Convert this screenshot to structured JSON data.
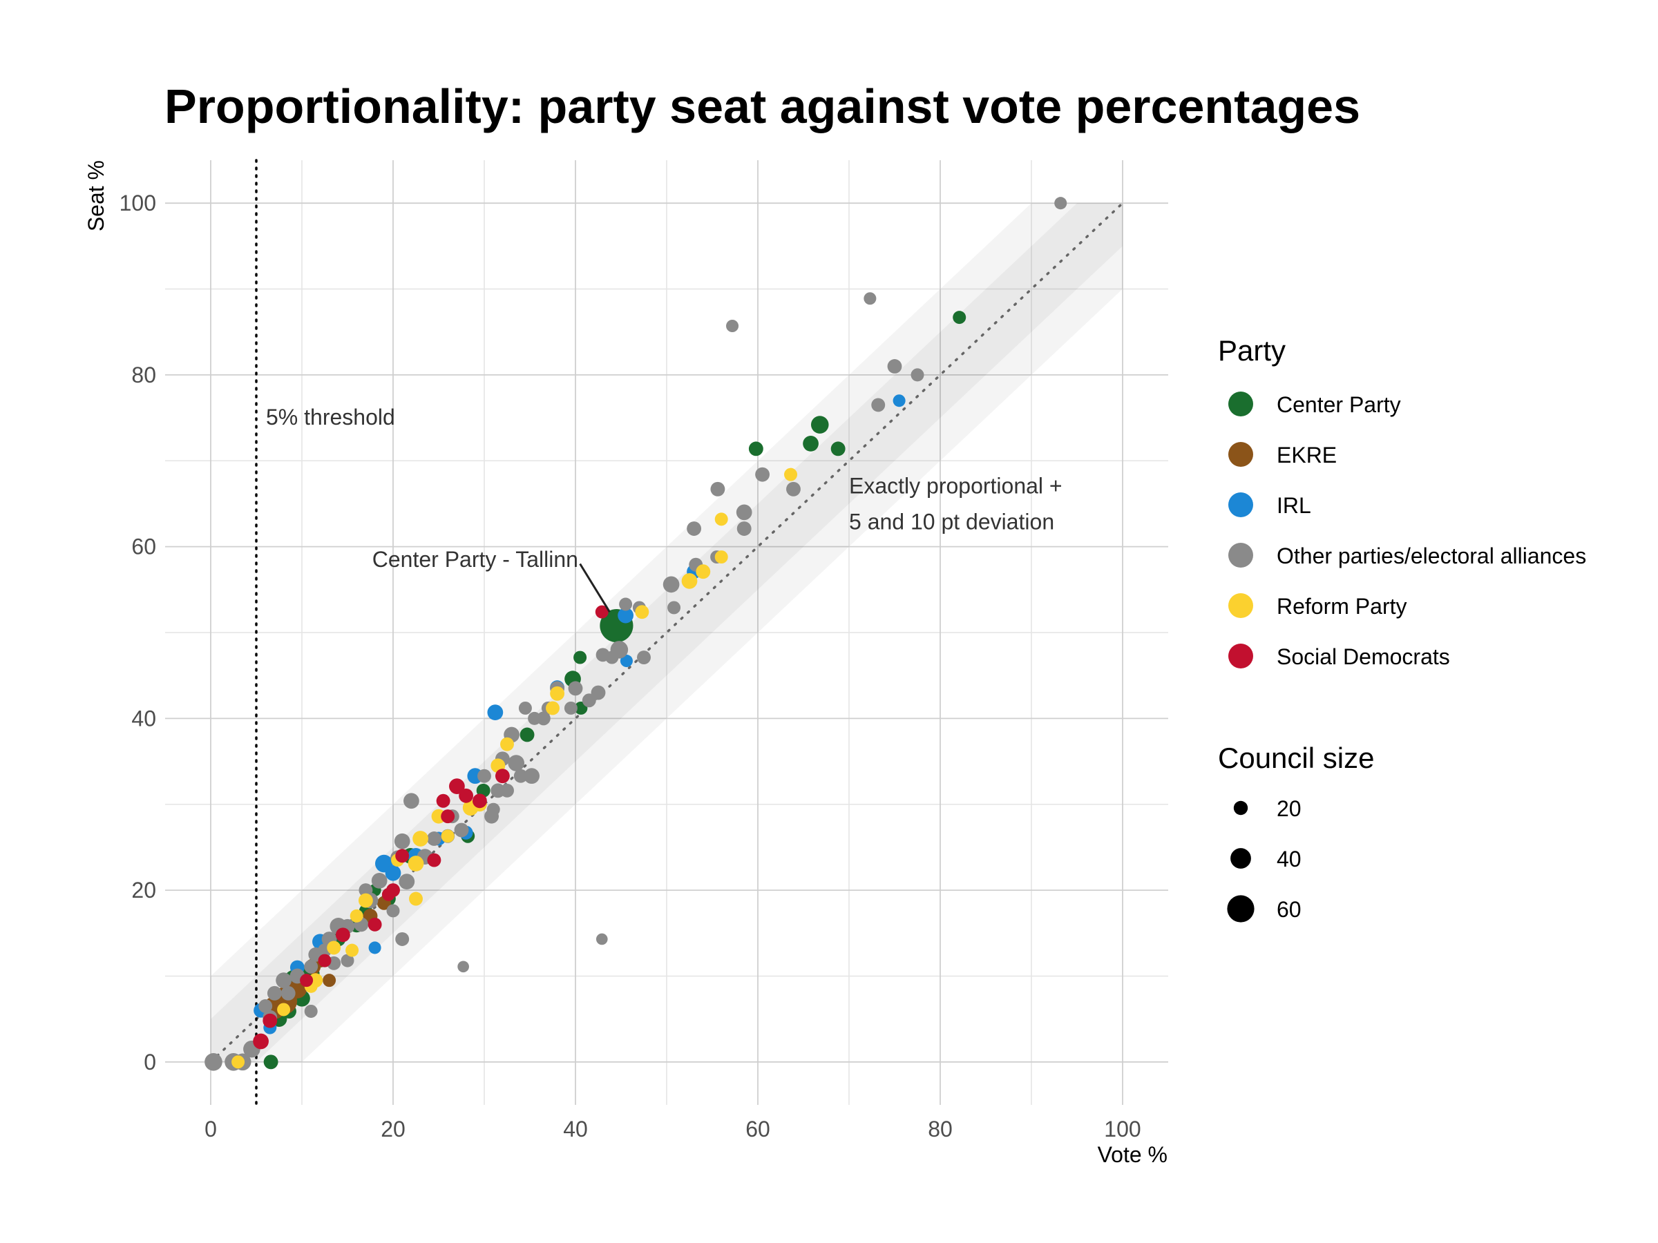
{
  "chart_data": {
    "type": "scatter",
    "title": "Proportionality: party seat against vote percentages",
    "xlabel": "Vote %",
    "ylabel": "Seat %",
    "xlim": [
      -5,
      105
    ],
    "ylim": [
      -5,
      105
    ],
    "x_ticks": [
      0,
      20,
      40,
      60,
      80,
      100
    ],
    "y_ticks": [
      0,
      20,
      40,
      60,
      80,
      100
    ],
    "grid": true,
    "legend_position": "right",
    "reference_line": {
      "label": "Exactly proportional + 5 and 10 pt deviation",
      "label_lines": [
        "Exactly proportional +",
        "5 and 10 pt deviation"
      ],
      "slope": 1,
      "bands": [
        5,
        10
      ]
    },
    "threshold": {
      "x": 5,
      "label": "5% threshold"
    },
    "annotations": [
      {
        "text": "Center Party - Tallinn",
        "x": 44.5,
        "y": 50.8
      }
    ],
    "legend": {
      "color_title": "Party",
      "size_title": "Council size",
      "size_labels": [
        "20",
        "40",
        "60"
      ],
      "size_values": [
        20,
        40,
        60
      ]
    },
    "colors": {
      "Center Party": "#1a6e2e",
      "EKRE": "#8b5419",
      "IRL": "#1c87d5",
      "Other parties/electoral alliances": "#8a8a8a",
      "Reform Party": "#fbd12f",
      "Social Democrats": "#c2102f"
    },
    "series": [
      {
        "name": "Center Party",
        "points": [
          [
            82.1,
            86.7,
            17
          ],
          [
            66.8,
            74.2,
            31
          ],
          [
            59.8,
            71.4,
            21
          ],
          [
            65.8,
            72.0,
            25
          ],
          [
            68.8,
            71.4,
            21
          ],
          [
            44.5,
            50.8,
            79
          ],
          [
            40.5,
            47.1,
            17
          ],
          [
            39.7,
            44.6,
            27
          ],
          [
            40.6,
            41.2,
            17
          ],
          [
            34.7,
            38.1,
            21
          ],
          [
            29.9,
            31.6,
            19
          ],
          [
            28.2,
            26.3,
            19
          ],
          [
            21.9,
            24.0,
            25
          ],
          [
            18.0,
            20.0,
            15
          ],
          [
            19.5,
            19.0,
            21
          ],
          [
            17.0,
            17.6,
            17
          ],
          [
            16.0,
            16.0,
            25
          ],
          [
            15.0,
            15.8,
            19
          ],
          [
            14.0,
            14.3,
            21
          ],
          [
            12.5,
            11.8,
            17
          ],
          [
            11.0,
            10.3,
            29
          ],
          [
            9.2,
            9.5,
            42
          ],
          [
            8.0,
            7.1,
            21
          ],
          [
            10.0,
            7.4,
            27
          ],
          [
            7.5,
            5.0,
            25
          ],
          [
            6.6,
            0.0,
            21
          ],
          [
            8.6,
            5.9,
            21
          ]
        ]
      },
      {
        "name": "EKRE",
        "points": [
          [
            8.0,
            7.1,
            60
          ],
          [
            7.0,
            6.3,
            46
          ],
          [
            9.5,
            8.5,
            35
          ],
          [
            11.2,
            11.1,
            25
          ],
          [
            13.0,
            9.5,
            17
          ],
          [
            17.5,
            17.0,
            21
          ],
          [
            19.0,
            18.5,
            19
          ],
          [
            3.0,
            0.0,
            21
          ],
          [
            12.0,
            11.8,
            19
          ]
        ]
      },
      {
        "name": "IRL",
        "points": [
          [
            75.5,
            77.0,
            15
          ],
          [
            45.5,
            52.0,
            25
          ],
          [
            45.6,
            46.7,
            15
          ],
          [
            53.0,
            57.1,
            21
          ],
          [
            31.2,
            40.7,
            25
          ],
          [
            38.0,
            43.6,
            21
          ],
          [
            29.0,
            33.3,
            25
          ],
          [
            28.0,
            26.7,
            19
          ],
          [
            19.0,
            23.1,
            31
          ],
          [
            20.0,
            22.0,
            25
          ],
          [
            18.0,
            13.3,
            15
          ],
          [
            12.0,
            14.0,
            25
          ],
          [
            9.5,
            11.0,
            21
          ],
          [
            5.5,
            6.0,
            21
          ],
          [
            6.5,
            4.0,
            17
          ],
          [
            22.5,
            24.0,
            25
          ],
          [
            16.5,
            16.0,
            19
          ],
          [
            25.0,
            26.0,
            19
          ]
        ]
      },
      {
        "name": "Other parties/electoral alliances",
        "points": [
          [
            93.2,
            100.0,
            15
          ],
          [
            72.3,
            88.9,
            15
          ],
          [
            57.2,
            85.7,
            15
          ],
          [
            75.0,
            81.0,
            21
          ],
          [
            77.5,
            80.0,
            17
          ],
          [
            73.2,
            76.5,
            19
          ],
          [
            60.5,
            68.4,
            21
          ],
          [
            63.9,
            66.7,
            21
          ],
          [
            55.6,
            66.7,
            21
          ],
          [
            58.5,
            64.0,
            25
          ],
          [
            53.0,
            62.1,
            21
          ],
          [
            58.5,
            62.1,
            21
          ],
          [
            55.5,
            58.8,
            17
          ],
          [
            53.2,
            57.9,
            19
          ],
          [
            50.5,
            55.6,
            27
          ],
          [
            45.5,
            53.3,
            17
          ],
          [
            47.0,
            52.9,
            17
          ],
          [
            50.8,
            52.9,
            17
          ],
          [
            44.0,
            47.1,
            17
          ],
          [
            43.0,
            47.4,
            19
          ],
          [
            44.8,
            48.0,
            31
          ],
          [
            47.5,
            47.1,
            19
          ],
          [
            42.5,
            43.0,
            21
          ],
          [
            41.5,
            42.1,
            19
          ],
          [
            40.0,
            43.5,
            21
          ],
          [
            38.0,
            43.5,
            21
          ],
          [
            37.0,
            41.2,
            17
          ],
          [
            39.5,
            41.2,
            17
          ],
          [
            35.5,
            40.0,
            17
          ],
          [
            36.5,
            40.0,
            19
          ],
          [
            34.5,
            41.2,
            17
          ],
          [
            33.0,
            38.1,
            25
          ],
          [
            32.0,
            35.3,
            21
          ],
          [
            33.5,
            34.8,
            27
          ],
          [
            34.0,
            33.3,
            19
          ],
          [
            35.2,
            33.3,
            25
          ],
          [
            30.0,
            33.3,
            19
          ],
          [
            31.5,
            31.6,
            21
          ],
          [
            31.0,
            29.4,
            17
          ],
          [
            30.8,
            28.6,
            21
          ],
          [
            32.5,
            31.6,
            19
          ],
          [
            22.0,
            30.4,
            25
          ],
          [
            26.0,
            26.3,
            19
          ],
          [
            26.5,
            28.6,
            19
          ],
          [
            27.5,
            27.0,
            21
          ],
          [
            24.5,
            26.0,
            21
          ],
          [
            23.5,
            23.9,
            25
          ],
          [
            21.0,
            25.7,
            25
          ],
          [
            20.5,
            23.8,
            21
          ],
          [
            21.5,
            21.0,
            25
          ],
          [
            18.5,
            21.1,
            25
          ],
          [
            17.0,
            20.0,
            19
          ],
          [
            17.5,
            18.8,
            25
          ],
          [
            20.0,
            17.6,
            17
          ],
          [
            16.5,
            16.0,
            21
          ],
          [
            15.0,
            15.8,
            21
          ],
          [
            14.0,
            15.8,
            29
          ],
          [
            13.0,
            14.3,
            23
          ],
          [
            12.5,
            13.0,
            19
          ],
          [
            11.5,
            12.5,
            21
          ],
          [
            15.0,
            11.8,
            17
          ],
          [
            11.0,
            11.1,
            19
          ],
          [
            9.5,
            10.0,
            23
          ],
          [
            8.0,
            9.5,
            25
          ],
          [
            7.0,
            8.0,
            21
          ],
          [
            8.5,
            8.0,
            21
          ],
          [
            6.0,
            6.5,
            19
          ],
          [
            11.0,
            5.9,
            17
          ],
          [
            4.5,
            1.5,
            29
          ],
          [
            3.5,
            0.0,
            29
          ],
          [
            2.5,
            0.0,
            31
          ],
          [
            0.3,
            0.0,
            31
          ],
          [
            21.0,
            14.3,
            19
          ],
          [
            42.9,
            14.3,
            12
          ],
          [
            27.7,
            11.1,
            12
          ],
          [
            6.5,
            5.2,
            21
          ],
          [
            13.5,
            11.5,
            19
          ]
        ]
      },
      {
        "name": "Reform Party",
        "points": [
          [
            63.6,
            68.4,
            17
          ],
          [
            56.0,
            63.2,
            17
          ],
          [
            56.0,
            58.8,
            17
          ],
          [
            54.0,
            57.1,
            21
          ],
          [
            52.5,
            56.0,
            25
          ],
          [
            47.3,
            52.4,
            19
          ],
          [
            38.0,
            42.9,
            21
          ],
          [
            37.5,
            41.2,
            19
          ],
          [
            32.5,
            37.0,
            19
          ],
          [
            31.5,
            34.5,
            21
          ],
          [
            29.5,
            30.0,
            21
          ],
          [
            28.5,
            29.6,
            25
          ],
          [
            25.0,
            28.6,
            21
          ],
          [
            23.0,
            26.0,
            25
          ],
          [
            22.5,
            23.1,
            25
          ],
          [
            22.5,
            19.0,
            19
          ],
          [
            20.5,
            23.5,
            17
          ],
          [
            17.0,
            18.8,
            21
          ],
          [
            16.0,
            17.0,
            17
          ],
          [
            15.5,
            13.0,
            17
          ],
          [
            13.5,
            13.3,
            19
          ],
          [
            11.5,
            9.5,
            21
          ],
          [
            11.0,
            8.8,
            17
          ],
          [
            8.0,
            6.1,
            17
          ],
          [
            3.0,
            0.0,
            17
          ],
          [
            26.0,
            26.3,
            17
          ]
        ]
      },
      {
        "name": "Social Democrats",
        "points": [
          [
            42.9,
            52.4,
            17
          ],
          [
            27.0,
            32.1,
            25
          ],
          [
            28.0,
            31.0,
            21
          ],
          [
            32.0,
            33.3,
            21
          ],
          [
            25.5,
            30.4,
            19
          ],
          [
            29.5,
            30.4,
            21
          ],
          [
            26.0,
            28.6,
            19
          ],
          [
            19.5,
            19.5,
            17
          ],
          [
            20.0,
            20.0,
            19
          ],
          [
            21.0,
            24.0,
            19
          ],
          [
            24.5,
            23.5,
            19
          ],
          [
            18.0,
            16.0,
            19
          ],
          [
            14.5,
            14.8,
            21
          ],
          [
            12.5,
            11.8,
            17
          ],
          [
            10.5,
            9.5,
            17
          ],
          [
            5.5,
            2.4,
            25
          ],
          [
            6.5,
            4.8,
            21
          ]
        ]
      }
    ]
  }
}
